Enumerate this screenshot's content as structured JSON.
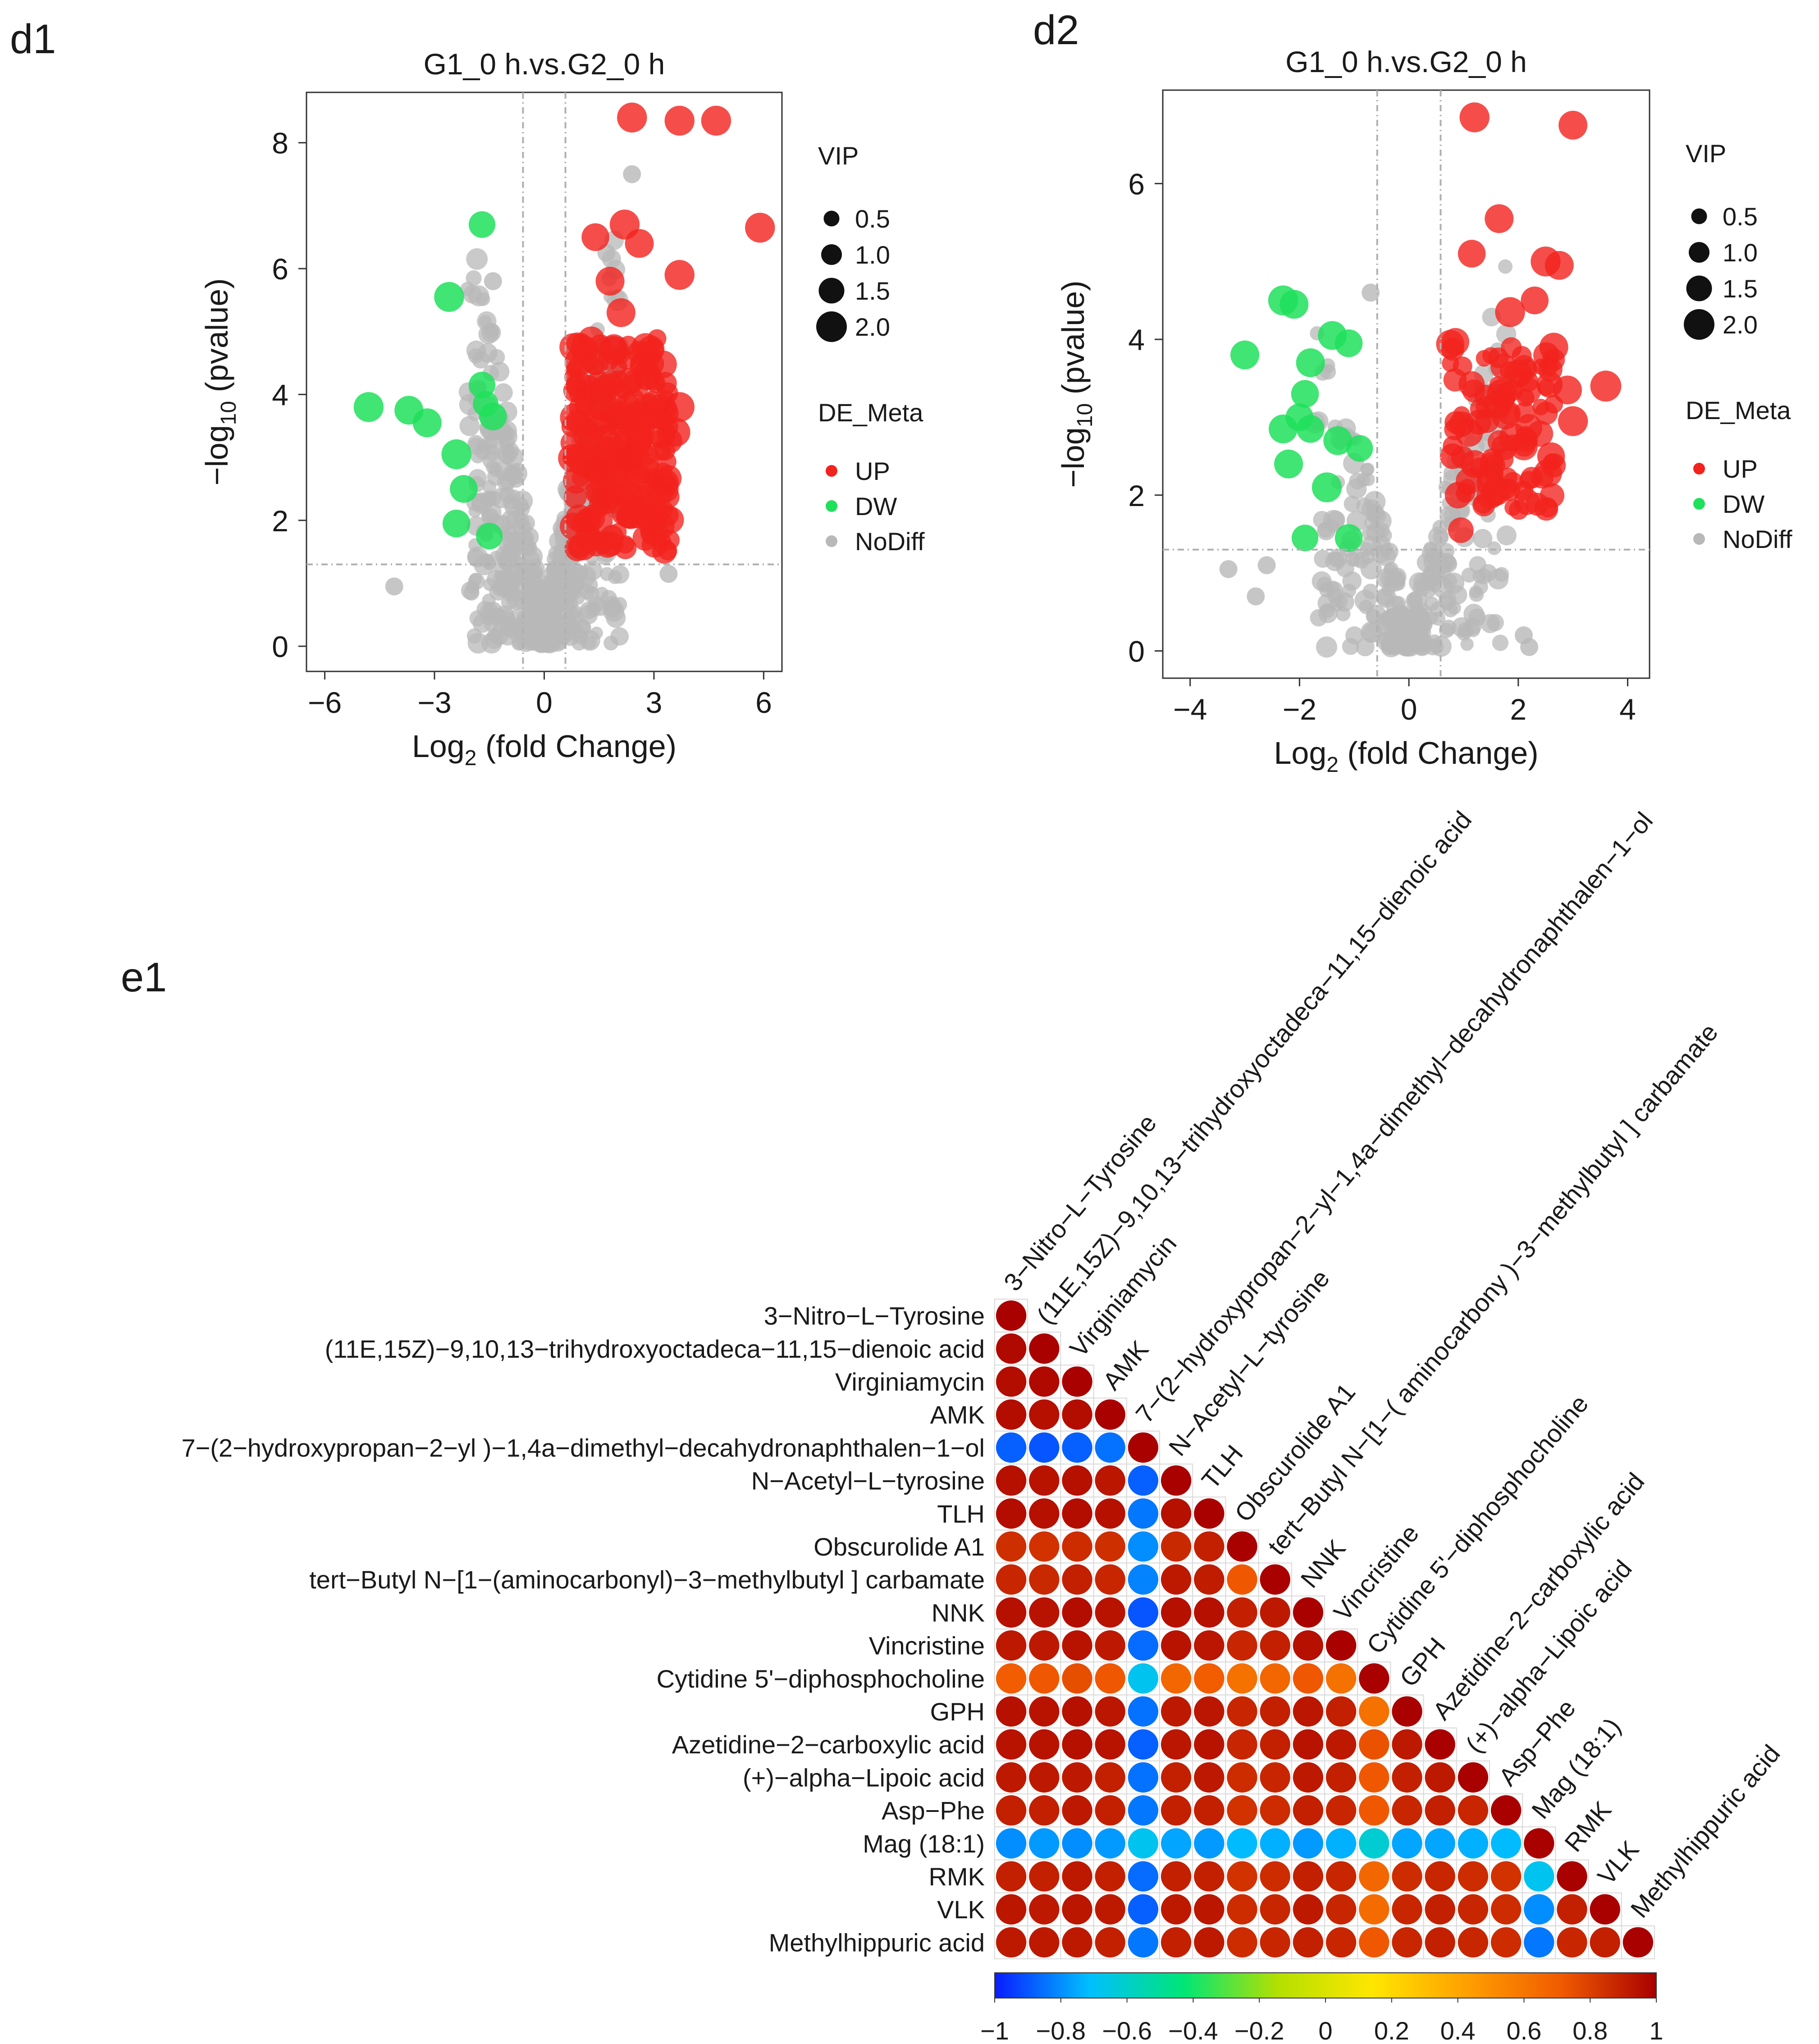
{
  "chart_data": [
    {
      "panel": "d1",
      "type": "scatter",
      "title": "G1_0 h.vs.G2_0 h",
      "xlabel_main": "Log",
      "xlabel_sub": "2",
      "xlabel_rest": " (fold Change)",
      "ylabel_pre": "−log",
      "ylabel_sub": "10",
      "ylabel_rest": " (pvalue)",
      "x_ticks": [
        -6,
        -3,
        0,
        3,
        6
      ],
      "x_tick_labels": [
        "−6",
        "−3",
        "0",
        "3",
        "6"
      ],
      "y_ticks": [
        0,
        2,
        4,
        6,
        8
      ],
      "y_tick_labels": [
        "0",
        "2",
        "4",
        "6",
        "8"
      ],
      "xlim": [
        -6.5,
        6.5
      ],
      "ylim": [
        -0.4,
        8.8
      ],
      "fc_threshold": 0.58,
      "p_threshold": 1.3,
      "legend_size_title": "VIP",
      "legend_size_values": [
        0.5,
        1.0,
        1.5,
        2.0
      ],
      "legend_size_labels": [
        "0.5",
        "1.0",
        "1.5",
        "2.0"
      ],
      "legend_color_title": "DE_Meta",
      "legend_color_labels": [
        "UP",
        "DW",
        "NoDiff"
      ],
      "highlight_points": {
        "UP": [
          [
            2.4,
            8.4,
            1.6
          ],
          [
            3.7,
            8.35,
            1.6
          ],
          [
            4.7,
            8.35,
            1.6
          ],
          [
            5.9,
            6.65,
            1.6
          ],
          [
            2.2,
            6.7,
            1.6
          ],
          [
            2.6,
            6.4,
            1.5
          ],
          [
            1.4,
            6.5,
            1.4
          ],
          [
            3.7,
            5.9,
            1.6
          ],
          [
            1.8,
            5.8,
            1.5
          ],
          [
            2.1,
            5.3,
            1.5
          ],
          [
            1.9,
            4.7,
            1.5
          ],
          [
            2.8,
            4.3,
            1.5
          ],
          [
            3.7,
            3.8,
            1.6
          ],
          [
            3.6,
            3.4,
            1.5
          ],
          [
            3.3,
            2.6,
            1.4
          ],
          [
            1.2,
            4.1,
            1.3
          ],
          [
            1.6,
            3.5,
            1.4
          ],
          [
            2.3,
            3.0,
            1.4
          ],
          [
            1.4,
            2.8,
            1.3
          ],
          [
            1.8,
            2.4,
            1.3
          ],
          [
            1.2,
            2.0,
            1.2
          ]
        ],
        "DW": [
          [
            -4.8,
            3.8,
            1.6
          ],
          [
            -3.7,
            3.75,
            1.5
          ],
          [
            -3.2,
            3.55,
            1.5
          ],
          [
            -2.6,
            5.55,
            1.6
          ],
          [
            -2.4,
            3.05,
            1.6
          ],
          [
            -2.2,
            2.5,
            1.4
          ],
          [
            -2.4,
            1.95,
            1.4
          ],
          [
            -1.7,
            6.7,
            1.3
          ],
          [
            -1.7,
            4.15,
            1.3
          ],
          [
            -1.4,
            3.65,
            1.4
          ],
          [
            -1.5,
            1.75,
            1.3
          ],
          [
            -1.6,
            3.85,
            1.2
          ]
        ]
      },
      "colors": {
        "UP": "#f2221d",
        "DW": "#1fe05a",
        "NoDiff": "#b8b8b8"
      }
    },
    {
      "panel": "d2",
      "type": "scatter",
      "title": "G1_0 h.vs.G2_0 h",
      "xlabel_main": "Log",
      "xlabel_sub": "2",
      "xlabel_rest": " (fold Change)",
      "ylabel_pre": "−log",
      "ylabel_sub": "10",
      "ylabel_rest": " (pvalue)",
      "x_ticks": [
        -4,
        -2,
        0,
        2,
        4
      ],
      "x_tick_labels": [
        "−4",
        "−2",
        "0",
        "2",
        "4"
      ],
      "y_ticks": [
        0,
        2,
        4,
        6
      ],
      "y_tick_labels": [
        "0",
        "2",
        "4",
        "6"
      ],
      "xlim": [
        -4.5,
        4.4
      ],
      "ylim": [
        -0.35,
        7.2
      ],
      "fc_threshold": 0.58,
      "p_threshold": 1.3,
      "legend_size_title": "VIP",
      "legend_size_values": [
        0.5,
        1.0,
        1.5,
        2.0
      ],
      "legend_size_labels": [
        "0.5",
        "1.0",
        "1.5",
        "2.0"
      ],
      "legend_color_title": "DE_Meta",
      "legend_color_labels": [
        "UP",
        "DW",
        "NoDiff"
      ],
      "highlight_points": {
        "UP": [
          [
            1.2,
            6.85,
            1.6
          ],
          [
            3.0,
            6.75,
            1.5
          ],
          [
            1.15,
            5.1,
            1.4
          ],
          [
            1.65,
            5.55,
            1.5
          ],
          [
            2.5,
            5.0,
            1.6
          ],
          [
            2.75,
            4.95,
            1.5
          ],
          [
            3.6,
            3.4,
            1.7
          ],
          [
            1.85,
            4.35,
            1.6
          ],
          [
            2.3,
            4.5,
            1.4
          ],
          [
            2.65,
            3.9,
            1.5
          ],
          [
            2.9,
            3.35,
            1.5
          ],
          [
            3.0,
            2.95,
            1.6
          ],
          [
            2.6,
            2.5,
            1.4
          ],
          [
            1.7,
            3.3,
            1.6
          ],
          [
            1.1,
            2.8,
            1.4
          ],
          [
            1.2,
            2.4,
            1.4
          ],
          [
            0.9,
            2.0,
            1.3
          ],
          [
            0.95,
            1.55,
            1.2
          ],
          [
            0.8,
            2.5,
            1.2
          ]
        ],
        "DW": [
          [
            -2.3,
            4.5,
            1.6
          ],
          [
            -2.1,
            4.45,
            1.5
          ],
          [
            -3.0,
            3.8,
            1.5
          ],
          [
            -1.8,
            3.7,
            1.5
          ],
          [
            -1.9,
            3.3,
            1.4
          ],
          [
            -2.0,
            3.0,
            1.4
          ],
          [
            -2.3,
            2.85,
            1.5
          ],
          [
            -2.2,
            2.4,
            1.5
          ],
          [
            -1.8,
            2.85,
            1.4
          ],
          [
            -1.4,
            4.05,
            1.5
          ],
          [
            -1.1,
            3.95,
            1.4
          ],
          [
            -1.3,
            2.7,
            1.5
          ],
          [
            -1.5,
            2.1,
            1.6
          ],
          [
            -0.9,
            2.6,
            1.3
          ],
          [
            -1.1,
            1.45,
            1.4
          ],
          [
            -1.9,
            1.45,
            1.3
          ]
        ]
      },
      "colors": {
        "UP": "#f2221d",
        "DW": "#1fe05a",
        "NoDiff": "#b8b8b8"
      }
    },
    {
      "panel": "e1",
      "type": "heatmap",
      "variables": [
        "3−Nitro−L−Tyrosine",
        "(11E,15Z)−9,10,13−trihydroxyoctadeca−11,15−dienoic acid",
        "Virginiamycin",
        "AMK",
        "7−(2−hydroxypropan−2−yl )−1,4a−dimethyl−decahydronaphthalen−1−ol",
        "N−Acetyl−L−tyrosine",
        "TLH",
        "Obscurolide A1",
        "tert−Butyl N−[1−(aminocarbonyl)−3−methylbutyl ] carbamate",
        "NNK",
        "Vincristine",
        "Cytidine 5'−diphosphocholine",
        "GPH",
        "Azetidine−2−carboxylic acid",
        "(+)−alpha−Lipoic acid",
        "Asp−Phe",
        "Mag (18:1)",
        "RMK",
        "VLK",
        "Methylhippuric acid"
      ],
      "column_labels": [
        "3−Nitro−L−Tyrosine",
        "(11E,15Z)−9,10,13−trihydroxyoctadeca−11,15−dienoic acid",
        "Virginiamycin",
        "AMK",
        "7−(2−hydroxypropan−2−yl−1,4a−dimethyl−decahydronaphthalen−1−ol",
        "N−Acetyl−L−tyrosine",
        "TLH",
        "Obscurolide A1",
        "tert−Butyl N−[1−( aminocarbony )−3−methylbutyl ] carbamate",
        "NNK",
        "Vincristine",
        "Cytidine 5'−diphosphocholine",
        "GPH",
        "Azetidine−2−carboxylic acid",
        "(+)−alpha−Lipoic acid",
        "Asp−Phe",
        "Mag (18:1)",
        "RMK",
        "VLK",
        "Methylhippuric acid"
      ],
      "matrix": [
        [
          1
        ],
        [
          0.97,
          1
        ],
        [
          0.96,
          0.97,
          1
        ],
        [
          0.96,
          0.95,
          0.96,
          1
        ],
        [
          -0.88,
          -0.9,
          -0.88,
          -0.85,
          1
        ],
        [
          0.95,
          0.94,
          0.95,
          0.93,
          -0.88,
          1
        ],
        [
          0.96,
          0.95,
          0.96,
          0.95,
          -0.84,
          0.95,
          1
        ],
        [
          0.85,
          0.84,
          0.86,
          0.85,
          -0.8,
          0.87,
          0.9,
          1
        ],
        [
          0.88,
          0.87,
          0.9,
          0.88,
          -0.82,
          0.92,
          0.91,
          0.72,
          1
        ],
        [
          0.95,
          0.94,
          0.96,
          0.94,
          -0.9,
          0.95,
          0.95,
          0.9,
          0.92,
          1
        ],
        [
          0.92,
          0.92,
          0.94,
          0.92,
          -0.86,
          0.94,
          0.93,
          0.88,
          0.9,
          0.95,
          1
        ],
        [
          0.7,
          0.72,
          0.75,
          0.72,
          -0.68,
          0.66,
          0.7,
          0.62,
          0.66,
          0.72,
          0.62,
          1
        ],
        [
          0.95,
          0.94,
          0.95,
          0.93,
          -0.85,
          0.92,
          0.93,
          0.88,
          0.9,
          0.93,
          0.9,
          0.62,
          1
        ],
        [
          0.94,
          0.94,
          0.95,
          0.94,
          -0.88,
          0.93,
          0.94,
          0.88,
          0.9,
          0.94,
          0.92,
          0.74,
          0.92,
          1
        ],
        [
          0.92,
          0.92,
          0.92,
          0.9,
          -0.85,
          0.9,
          0.92,
          0.86,
          0.88,
          0.92,
          0.9,
          0.72,
          0.9,
          0.92,
          1
        ],
        [
          0.9,
          0.9,
          0.92,
          0.9,
          -0.84,
          0.9,
          0.9,
          0.84,
          0.86,
          0.9,
          0.88,
          0.72,
          0.88,
          0.9,
          0.88,
          1
        ],
        [
          -0.8,
          -0.78,
          -0.8,
          -0.78,
          -0.68,
          -0.76,
          -0.78,
          -0.72,
          -0.74,
          -0.78,
          -0.74,
          -0.62,
          -0.76,
          -0.76,
          -0.74,
          -0.72,
          1
        ],
        [
          0.9,
          0.9,
          0.92,
          0.9,
          -0.86,
          0.9,
          0.9,
          0.84,
          0.86,
          0.9,
          0.88,
          0.66,
          0.86,
          0.88,
          0.86,
          0.84,
          -0.68,
          1
        ],
        [
          0.93,
          0.92,
          0.93,
          0.92,
          -0.88,
          0.92,
          0.93,
          0.86,
          0.88,
          0.92,
          0.88,
          0.64,
          0.88,
          0.9,
          0.88,
          0.86,
          -0.8,
          0.9,
          1
        ],
        [
          0.92,
          0.92,
          0.92,
          0.9,
          -0.84,
          0.9,
          0.92,
          0.86,
          0.88,
          0.9,
          0.88,
          0.72,
          0.88,
          0.9,
          0.88,
          0.86,
          -0.84,
          0.88,
          0.9,
          1
        ]
      ],
      "colorbar_ticks": [
        -1,
        -0.8,
        -0.6,
        -0.4,
        -0.2,
        0,
        0.2,
        0.4,
        0.6,
        0.8,
        1
      ],
      "colorbar_labels": [
        "−1",
        "−0.8",
        "−0.6",
        "−0.4",
        "−0.2",
        "0",
        "0.2",
        "0.4",
        "0.6",
        "0.8",
        "1"
      ],
      "colorbar_colors": [
        "#0a1cff",
        "#00bfff",
        "#00e676",
        "#b4e000",
        "#ffe600",
        "#ff9f00",
        "#f05a00",
        "#a90000"
      ]
    }
  ],
  "panel_labels": {
    "d1": "d1",
    "d2": "d2",
    "e1": "e1"
  }
}
